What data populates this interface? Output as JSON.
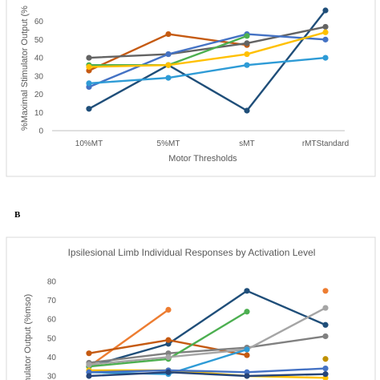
{
  "chart_data": [
    {
      "type": "line",
      "panel": "A",
      "title": "",
      "xlabel": "Motor Thresholds",
      "ylabel": "%Maximal Stimulator Output (%",
      "categories": [
        "10%MT",
        "5%MT",
        "sMT",
        "rMTStandard"
      ],
      "y_ticks": [
        "0",
        "10",
        "20",
        "30",
        "40",
        "50",
        "60"
      ],
      "ylim": [
        0,
        66
      ],
      "grid": false,
      "series": [
        {
          "color": "#1f4e79",
          "values": [
            12,
            36,
            11,
            66
          ]
        },
        {
          "color": "#c55a11",
          "values": [
            33,
            53,
            47,
            null
          ]
        },
        {
          "color": "#636363",
          "values": [
            40,
            42,
            48,
            57
          ]
        },
        {
          "color": "#4472c4",
          "values": [
            24,
            42,
            53,
            50
          ]
        },
        {
          "color": "#4caf50",
          "values": [
            36,
            36,
            52,
            null
          ]
        },
        {
          "color": "#ffc000",
          "values": [
            35,
            36,
            42,
            54
          ]
        },
        {
          "color": "#2e9bd6",
          "values": [
            26,
            29,
            36,
            40
          ]
        }
      ]
    },
    {
      "type": "line",
      "panel": "B",
      "panel_label": "B",
      "title": "Ipsilesional Limb Individual Responses by Activation Level",
      "xlabel": "",
      "ylabel": "Stimulator Output (%mso)",
      "y_ticks": [
        "30",
        "40",
        "50",
        "60",
        "70",
        "80"
      ],
      "ylim": [
        30,
        80
      ],
      "grid": false,
      "series": [
        {
          "color": "#ed7d31",
          "values": [
            35,
            65,
            null,
            null
          ]
        },
        {
          "color": "#1f4e79",
          "values": [
            35,
            47,
            75,
            57
          ]
        },
        {
          "color": "#c55a11",
          "values": [
            42,
            49,
            41,
            null
          ]
        },
        {
          "color": "#808080",
          "values": [
            37,
            42,
            45,
            51
          ]
        },
        {
          "color": "#4caf50",
          "values": [
            35,
            39,
            64,
            null
          ]
        },
        {
          "color": "#a5a5a5",
          "values": [
            36,
            40,
            44,
            66
          ]
        },
        {
          "color": "#2e9bd6",
          "values": [
            32,
            31,
            44,
            null
          ]
        },
        {
          "color": "#ffc000",
          "values": [
            33,
            33,
            30,
            29
          ]
        },
        {
          "color": "#4472c4",
          "values": [
            32,
            33,
            32,
            34
          ]
        },
        {
          "color": "#264478",
          "values": [
            30,
            32,
            30,
            31
          ]
        },
        {
          "color": "#ed7d31",
          "values": [
            null,
            null,
            null,
            75
          ]
        },
        {
          "color": "#bf9000",
          "values": [
            null,
            null,
            null,
            39
          ]
        }
      ]
    }
  ]
}
